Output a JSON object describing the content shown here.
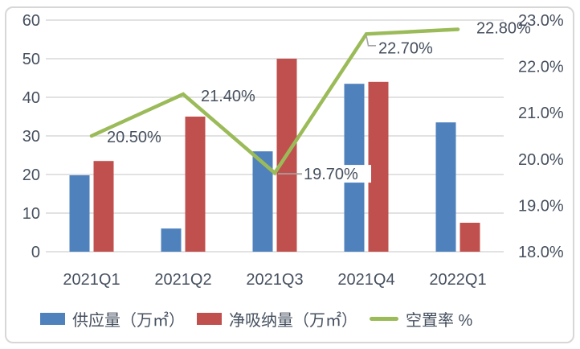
{
  "chart_data": {
    "type": "combo_bar_line",
    "title": "",
    "categories": [
      "2021Q1",
      "2021Q2",
      "2021Q3",
      "2021Q4",
      "2022Q1"
    ],
    "series": [
      {
        "name": "供应量（万㎡）",
        "type": "bar",
        "axis": "left",
        "color": "#4f81bd",
        "values": [
          19.8,
          6,
          26,
          43.5,
          33.5
        ]
      },
      {
        "name": "净吸纳量（万㎡）",
        "type": "bar",
        "axis": "left",
        "color": "#c0504d",
        "values": [
          23.5,
          35,
          50,
          44,
          7.5
        ]
      },
      {
        "name": "空置率 %",
        "type": "line",
        "axis": "right",
        "color": "#9bbb59",
        "values": [
          20.5,
          21.4,
          19.7,
          22.7,
          22.8
        ],
        "labels": [
          "20.50%",
          "21.40%",
          "19.70%",
          "22.70%",
          "22.80%"
        ]
      }
    ],
    "left_axis": {
      "min": 0,
      "max": 60,
      "step": 10,
      "ticks": [
        "0",
        "10",
        "20",
        "30",
        "40",
        "50",
        "60"
      ]
    },
    "right_axis": {
      "min": 18,
      "max": 23,
      "step": 1,
      "ticks": [
        "18.0%",
        "19.0%",
        "20.0%",
        "21.0%",
        "22.0%",
        "23.0%"
      ]
    },
    "grid": true,
    "legend_position": "bottom"
  },
  "colors": {
    "bar_supply": "#4f81bd",
    "bar_absorption": "#c0504d",
    "line_vacancy": "#9bbb59",
    "gridline": "#d9d9d9",
    "axis_text": "#46505f",
    "leader_line": "#a6a6a6",
    "frame_border": "#d7d7d7",
    "background": "#ffffff"
  },
  "legend": {
    "items": [
      {
        "label": "供应量（万㎡）",
        "swatch": "rect",
        "color": "#4f81bd"
      },
      {
        "label": "净吸纳量（万㎡）",
        "swatch": "rect",
        "color": "#c0504d"
      },
      {
        "label": "空置率 %",
        "swatch": "line",
        "color": "#9bbb59"
      }
    ]
  }
}
